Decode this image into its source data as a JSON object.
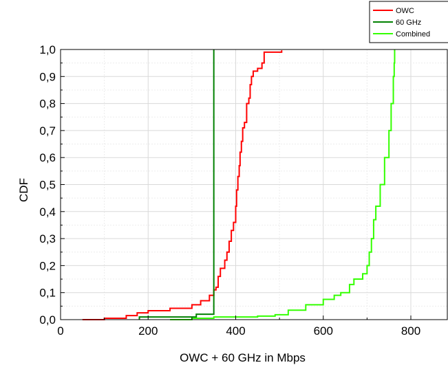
{
  "chart_data": {
    "type": "line",
    "title": "",
    "xlabel": "OWC + 60 GHz in Mbps",
    "ylabel": "CDF",
    "xlim": [
      0,
      860
    ],
    "ylim": [
      0,
      1.0
    ],
    "xticks": [
      0,
      200,
      400,
      600,
      800
    ],
    "xtick_labels": [
      "0",
      "200",
      "400",
      "600",
      "800"
    ],
    "yticks": [
      0,
      0.1,
      0.2,
      0.3,
      0.4,
      0.5,
      0.6,
      0.7,
      0.8,
      0.9,
      1.0
    ],
    "ytick_labels": [
      "0,0",
      "0,1",
      "0,2",
      "0,3",
      "0,4",
      "0,5",
      "0,6",
      "0,7",
      "0,8",
      "0,9",
      "1,0"
    ],
    "grid": true,
    "legend_position": "top-right",
    "series": [
      {
        "name": "OWC",
        "color": "#ff0000",
        "points": [
          [
            50,
            0
          ],
          [
            100,
            0.005
          ],
          [
            150,
            0.015
          ],
          [
            175,
            0.025
          ],
          [
            200,
            0.033
          ],
          [
            250,
            0.042
          ],
          [
            300,
            0.055
          ],
          [
            320,
            0.07
          ],
          [
            340,
            0.09
          ],
          [
            350,
            0.11
          ],
          [
            355,
            0.12
          ],
          [
            360,
            0.16
          ],
          [
            365,
            0.19
          ],
          [
            375,
            0.22
          ],
          [
            380,
            0.25
          ],
          [
            385,
            0.29
          ],
          [
            390,
            0.33
          ],
          [
            395,
            0.36
          ],
          [
            400,
            0.42
          ],
          [
            402,
            0.48
          ],
          [
            405,
            0.53
          ],
          [
            408,
            0.57
          ],
          [
            410,
            0.62
          ],
          [
            413,
            0.66
          ],
          [
            416,
            0.71
          ],
          [
            420,
            0.73
          ],
          [
            425,
            0.8
          ],
          [
            430,
            0.82
          ],
          [
            433,
            0.87
          ],
          [
            436,
            0.9
          ],
          [
            440,
            0.92
          ],
          [
            450,
            0.93
          ],
          [
            460,
            0.95
          ],
          [
            465,
            0.99
          ],
          [
            505,
            0.997
          ]
        ]
      },
      {
        "name": "60 GHz",
        "color": "#008000",
        "points": [
          [
            180,
            0
          ],
          [
            180,
            0.01
          ],
          [
            310,
            0.01
          ],
          [
            310,
            0.02
          ],
          [
            350,
            0.02
          ],
          [
            350,
            1.0
          ]
        ]
      },
      {
        "name": "Combined",
        "color": "#33ff00",
        "points": [
          [
            250,
            0
          ],
          [
            300,
            0.005
          ],
          [
            350,
            0.01
          ],
          [
            450,
            0.013
          ],
          [
            490,
            0.018
          ],
          [
            520,
            0.035
          ],
          [
            560,
            0.055
          ],
          [
            600,
            0.075
          ],
          [
            625,
            0.09
          ],
          [
            640,
            0.1
          ],
          [
            660,
            0.13
          ],
          [
            670,
            0.15
          ],
          [
            690,
            0.17
          ],
          [
            700,
            0.2
          ],
          [
            705,
            0.25
          ],
          [
            710,
            0.3
          ],
          [
            715,
            0.37
          ],
          [
            720,
            0.42
          ],
          [
            730,
            0.5
          ],
          [
            740,
            0.6
          ],
          [
            750,
            0.7
          ],
          [
            755,
            0.8
          ],
          [
            760,
            0.9
          ],
          [
            762,
            0.95
          ],
          [
            763,
            1.0
          ]
        ]
      }
    ]
  }
}
